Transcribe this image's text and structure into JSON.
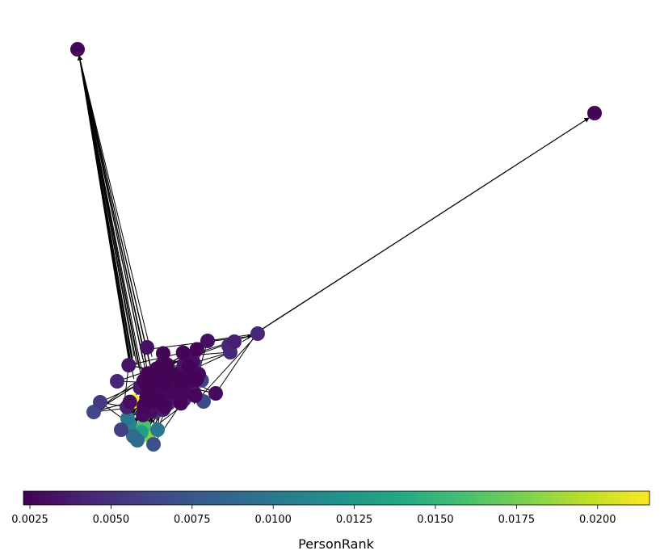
{
  "chart_data": {
    "type": "network",
    "colormap": "viridis",
    "colorbar": {
      "label": "PersonRank",
      "range": [
        0.0023,
        0.0216
      ],
      "ticks": [
        "0.0025",
        "0.0050",
        "0.0075",
        "0.0100",
        "0.0125",
        "0.0150",
        "0.0175",
        "0.0200"
      ],
      "tick_values": [
        0.0025,
        0.005,
        0.0075,
        0.01,
        0.0125,
        0.015,
        0.0175,
        0.02
      ]
    },
    "edge_color": "#000000",
    "outlier_node_value": 0.0025
  }
}
